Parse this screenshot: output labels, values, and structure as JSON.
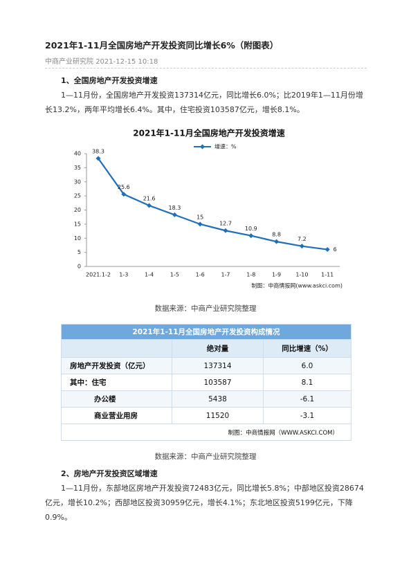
{
  "header": {
    "title": "2021年1-11月全国房地产开发投资同比增长6%（附图表）",
    "source": "中商产业研究院",
    "date": "2021-12-15 10:18"
  },
  "sections": [
    {
      "heading": "1、全国房地产开发投资增速",
      "paragraph": "1—11月份，全国房地产开发投资137314亿元，同比增长6.0%；比2019年1—11月份增长13.2%，两年平均增长6.4%。其中，住宅投资103587亿元，增长8.1%。"
    },
    {
      "heading": "2、房地产开发投资区域增速",
      "paragraph": "1—11月份，东部地区房地产开发投资72483亿元，同比增长5.8%；中部地区投资28674亿元，增长10.2%；西部地区投资30959亿元，增长4.1%；东北地区投资5199亿元，下降0.9%。"
    }
  ],
  "chart_data": {
    "type": "line",
    "title": "2021年1-11月全国房地产开发投资增速",
    "categories": [
      "2021.1-2",
      "1-3",
      "1-4",
      "1-5",
      "1-6",
      "1-7",
      "1-8",
      "1-9",
      "1-10",
      "1-11"
    ],
    "series": [
      {
        "name": "增速：%",
        "color": "#1f6fba",
        "values": [
          38.3,
          25.6,
          21.6,
          18.3,
          15,
          12.7,
          10.9,
          8.8,
          7.2,
          6
        ]
      }
    ],
    "ylim": [
      0,
      40
    ],
    "yticks": [
      0,
      5,
      10,
      15,
      20,
      25,
      30,
      35,
      40
    ],
    "grid": false,
    "credit": "制图：中商情报网(www.askci.com)",
    "caption": "数据来源：中商产业研究院整理"
  },
  "table": {
    "title": "2021年1-11月全国房地产开发投资构成情况",
    "columns": [
      "绝对量",
      "同比增速（%）"
    ],
    "rows": [
      [
        "房地产开发投资（亿元）",
        "137314",
        "6.0"
      ],
      [
        "其中：住宅",
        "103587",
        "8.1"
      ],
      [
        "办公楼",
        "5438",
        "-6.1"
      ],
      [
        "商业营业用房",
        "11520",
        "-3.1"
      ]
    ],
    "credit": "制图：中商情报网（WWW.ASKCI.COM）",
    "caption": "数据来源：中商产业研究院整理"
  }
}
